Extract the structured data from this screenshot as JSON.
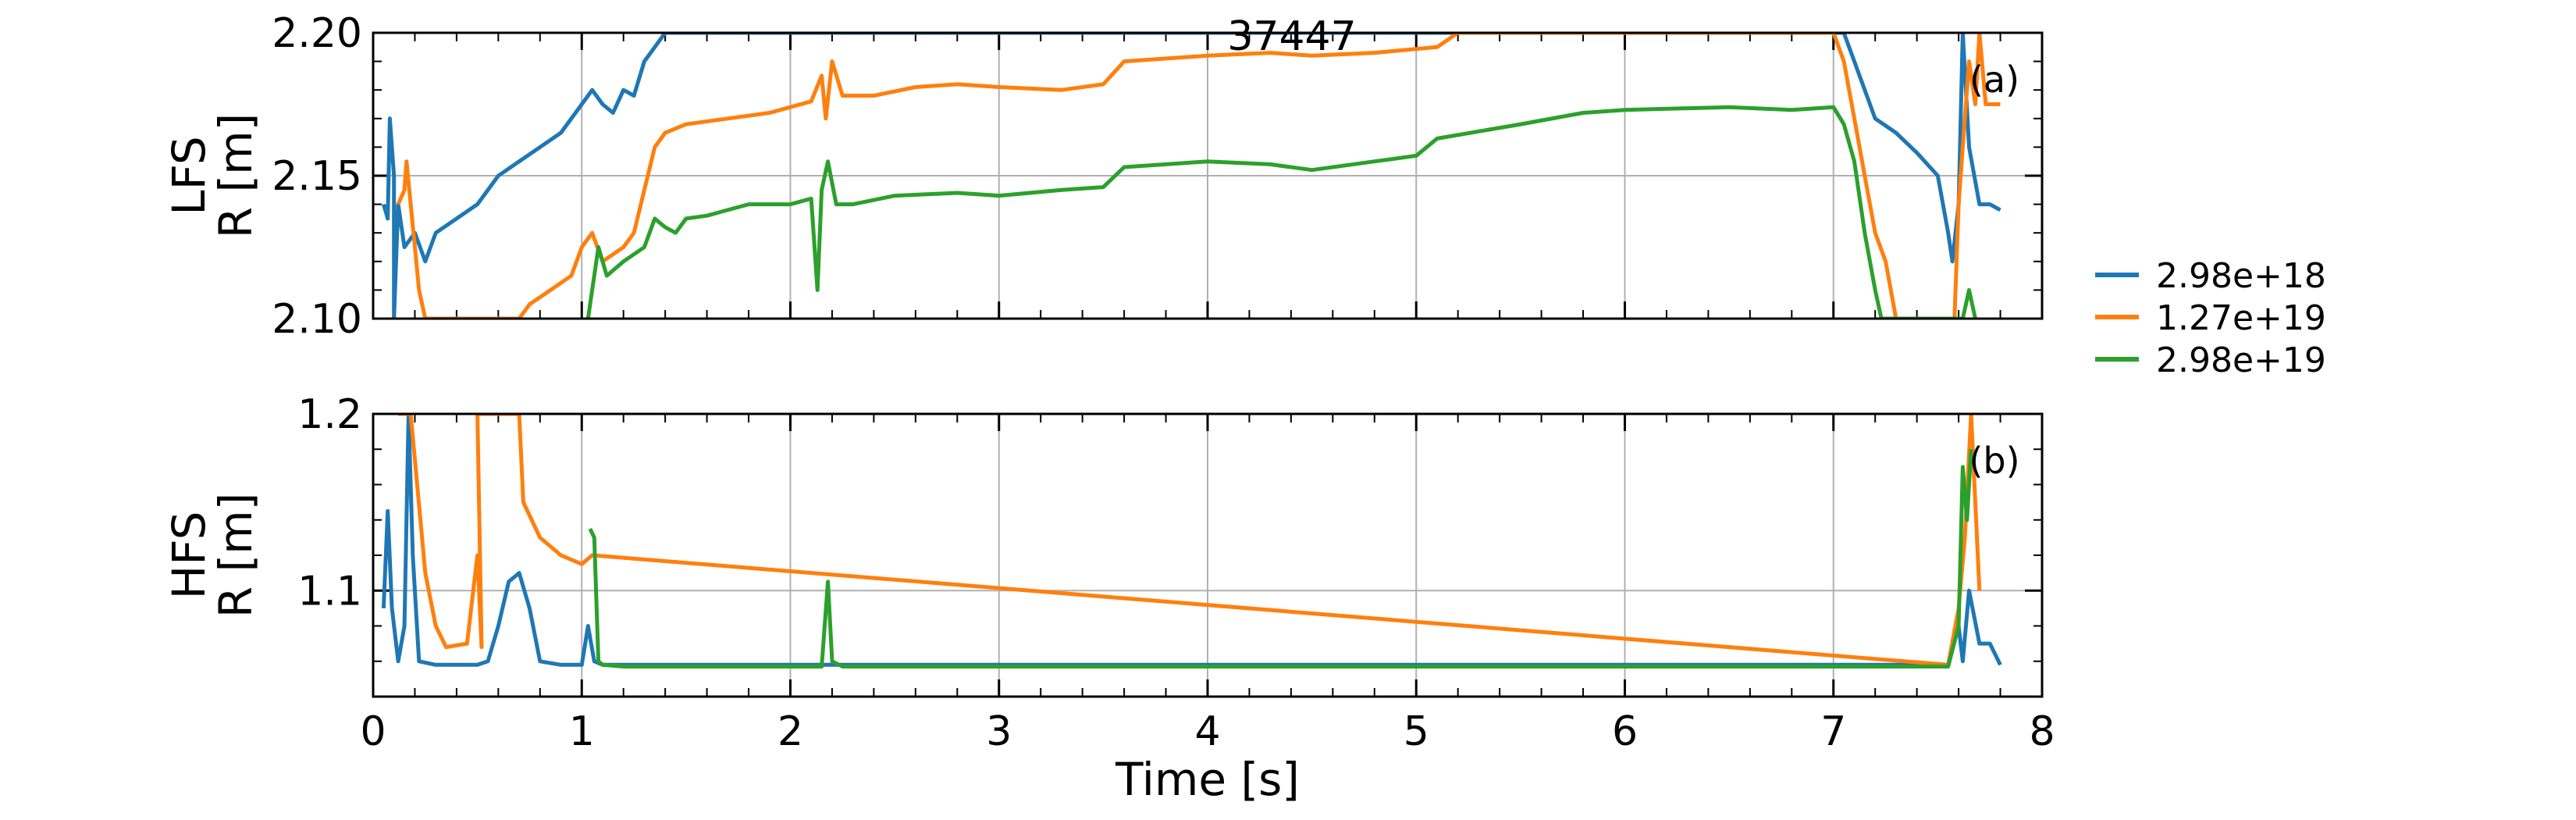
{
  "title": "37447",
  "xlabel": "Time [s]",
  "colors": {
    "series_1": "#1f77b4",
    "series_2": "#ff7f0e",
    "series_3": "#2ca02c",
    "grid": "#b0b0b0",
    "axes": "#000000"
  },
  "legend": {
    "placement": "right, outside plots",
    "entries": [
      "2.98e+18",
      "1.27e+19",
      "2.98e+19"
    ]
  },
  "chart_data": [
    {
      "type": "line",
      "panel_tag": "(a)",
      "title": "37447",
      "xlabel": "",
      "ylabel_line1": "LFS",
      "ylabel_line2": "R [m]",
      "xlim": [
        0,
        8
      ],
      "ylim": [
        2.1,
        2.2
      ],
      "xticks": [
        0,
        1,
        2,
        3,
        4,
        5,
        6,
        7,
        8
      ],
      "yticks": [
        2.1,
        2.15,
        2.2
      ],
      "ytick_labels": [
        "2.10",
        "2.15",
        "2.20"
      ],
      "grid": true,
      "series": [
        {
          "name": "2.98e+18",
          "points": [
            [
              0.05,
              2.14
            ],
            [
              0.07,
              2.135
            ],
            [
              0.08,
              2.17
            ],
            [
              0.1,
              2.15
            ],
            [
              0.1,
              2.1
            ],
            [
              0.12,
              2.14
            ],
            [
              0.15,
              2.125
            ],
            [
              0.2,
              2.13
            ],
            [
              0.25,
              2.12
            ],
            [
              0.3,
              2.13
            ],
            [
              0.4,
              2.135
            ],
            [
              0.5,
              2.14
            ],
            [
              0.6,
              2.15
            ],
            [
              0.7,
              2.155
            ],
            [
              0.8,
              2.16
            ],
            [
              0.9,
              2.165
            ],
            [
              1.0,
              2.175
            ],
            [
              1.05,
              2.18
            ],
            [
              1.1,
              2.175
            ],
            [
              1.15,
              2.172
            ],
            [
              1.2,
              2.18
            ],
            [
              1.25,
              2.178
            ],
            [
              1.3,
              2.19
            ],
            [
              1.35,
              2.195
            ],
            [
              1.4,
              2.2
            ],
            [
              7.05,
              2.2
            ],
            [
              7.1,
              2.19
            ],
            [
              7.2,
              2.17
            ],
            [
              7.3,
              2.165
            ],
            [
              7.4,
              2.158
            ],
            [
              7.5,
              2.15
            ],
            [
              7.55,
              2.13
            ],
            [
              7.57,
              2.12
            ],
            [
              7.6,
              2.14
            ],
            [
              7.62,
              2.2
            ],
            [
              7.65,
              2.16
            ],
            [
              7.7,
              2.14
            ],
            [
              7.75,
              2.14
            ],
            [
              7.8,
              2.138
            ]
          ]
        },
        {
          "name": "1.27e+19",
          "points": [
            [
              0.12,
              2.14
            ],
            [
              0.15,
              2.145
            ],
            [
              0.16,
              2.155
            ],
            [
              0.18,
              2.14
            ],
            [
              0.2,
              2.125
            ],
            [
              0.22,
              2.11
            ],
            [
              0.25,
              2.1
            ],
            [
              0.7,
              2.1
            ],
            [
              0.75,
              2.105
            ],
            [
              0.85,
              2.11
            ],
            [
              0.95,
              2.115
            ],
            [
              1.0,
              2.125
            ],
            [
              1.05,
              2.13
            ],
            [
              1.1,
              2.12
            ],
            [
              1.2,
              2.125
            ],
            [
              1.25,
              2.13
            ],
            [
              1.3,
              2.145
            ],
            [
              1.35,
              2.16
            ],
            [
              1.4,
              2.165
            ],
            [
              1.5,
              2.168
            ],
            [
              1.7,
              2.17
            ],
            [
              1.9,
              2.172
            ],
            [
              2.0,
              2.174
            ],
            [
              2.1,
              2.176
            ],
            [
              2.15,
              2.185
            ],
            [
              2.17,
              2.17
            ],
            [
              2.2,
              2.19
            ],
            [
              2.25,
              2.178
            ],
            [
              2.4,
              2.178
            ],
            [
              2.6,
              2.181
            ],
            [
              2.8,
              2.182
            ],
            [
              3.0,
              2.181
            ],
            [
              3.3,
              2.18
            ],
            [
              3.5,
              2.182
            ],
            [
              3.6,
              2.19
            ],
            [
              4.0,
              2.192
            ],
            [
              4.3,
              2.193
            ],
            [
              4.5,
              2.192
            ],
            [
              4.8,
              2.193
            ],
            [
              5.1,
              2.195
            ],
            [
              5.2,
              2.2
            ],
            [
              7.0,
              2.2
            ],
            [
              7.05,
              2.19
            ],
            [
              7.1,
              2.17
            ],
            [
              7.15,
              2.15
            ],
            [
              7.2,
              2.13
            ],
            [
              7.25,
              2.12
            ],
            [
              7.3,
              2.1
            ],
            [
              7.58,
              2.1
            ],
            [
              7.6,
              2.14
            ],
            [
              7.62,
              2.16
            ],
            [
              7.65,
              2.19
            ],
            [
              7.68,
              2.175
            ],
            [
              7.7,
              2.2
            ],
            [
              7.73,
              2.175
            ],
            [
              7.8,
              2.175
            ]
          ]
        },
        {
          "name": "2.98e+19",
          "points": [
            [
              1.03,
              2.1
            ],
            [
              1.05,
              2.11
            ],
            [
              1.08,
              2.125
            ],
            [
              1.12,
              2.115
            ],
            [
              1.2,
              2.12
            ],
            [
              1.3,
              2.125
            ],
            [
              1.35,
              2.135
            ],
            [
              1.4,
              2.132
            ],
            [
              1.45,
              2.13
            ],
            [
              1.5,
              2.135
            ],
            [
              1.6,
              2.136
            ],
            [
              1.7,
              2.138
            ],
            [
              1.8,
              2.14
            ],
            [
              2.0,
              2.14
            ],
            [
              2.1,
              2.142
            ],
            [
              2.13,
              2.11
            ],
            [
              2.15,
              2.145
            ],
            [
              2.18,
              2.155
            ],
            [
              2.22,
              2.14
            ],
            [
              2.3,
              2.14
            ],
            [
              2.5,
              2.143
            ],
            [
              2.8,
              2.144
            ],
            [
              3.0,
              2.143
            ],
            [
              3.3,
              2.145
            ],
            [
              3.5,
              2.146
            ],
            [
              3.6,
              2.153
            ],
            [
              4.0,
              2.155
            ],
            [
              4.3,
              2.154
            ],
            [
              4.5,
              2.152
            ],
            [
              4.8,
              2.155
            ],
            [
              5.0,
              2.157
            ],
            [
              5.1,
              2.163
            ],
            [
              5.5,
              2.168
            ],
            [
              5.8,
              2.172
            ],
            [
              6.0,
              2.173
            ],
            [
              6.5,
              2.174
            ],
            [
              6.8,
              2.173
            ],
            [
              7.0,
              2.174
            ],
            [
              7.05,
              2.168
            ],
            [
              7.1,
              2.155
            ],
            [
              7.15,
              2.13
            ],
            [
              7.2,
              2.11
            ],
            [
              7.23,
              2.1
            ],
            [
              7.62,
              2.1
            ],
            [
              7.65,
              2.11
            ],
            [
              7.68,
              2.1
            ]
          ]
        }
      ]
    },
    {
      "type": "line",
      "panel_tag": "(b)",
      "title": "",
      "xlabel": "Time [s]",
      "ylabel_line1": "HFS",
      "ylabel_line2": "R [m]",
      "xlim": [
        0,
        8
      ],
      "ylim": [
        1.04,
        1.2
      ],
      "xticks": [
        0,
        1,
        2,
        3,
        4,
        5,
        6,
        7,
        8
      ],
      "yticks": [
        1.1,
        1.2
      ],
      "ytick_labels": [
        "1.1",
        "1.2"
      ],
      "grid": true,
      "series": [
        {
          "name": "2.98e+18",
          "points": [
            [
              0.05,
              1.09
            ],
            [
              0.07,
              1.145
            ],
            [
              0.09,
              1.09
            ],
            [
              0.12,
              1.06
            ],
            [
              0.15,
              1.08
            ],
            [
              0.17,
              1.2
            ],
            [
              0.19,
              1.12
            ],
            [
              0.22,
              1.06
            ],
            [
              0.3,
              1.058
            ],
            [
              0.5,
              1.058
            ],
            [
              0.55,
              1.06
            ],
            [
              0.6,
              1.08
            ],
            [
              0.65,
              1.105
            ],
            [
              0.7,
              1.11
            ],
            [
              0.75,
              1.09
            ],
            [
              0.8,
              1.06
            ],
            [
              0.9,
              1.058
            ],
            [
              1.0,
              1.058
            ],
            [
              1.03,
              1.08
            ],
            [
              1.06,
              1.06
            ],
            [
              1.1,
              1.058
            ],
            [
              7.55,
              1.058
            ],
            [
              7.6,
              1.08
            ],
            [
              7.62,
              1.06
            ],
            [
              7.65,
              1.1
            ],
            [
              7.7,
              1.07
            ],
            [
              7.75,
              1.07
            ],
            [
              7.8,
              1.058
            ]
          ]
        },
        {
          "name": "1.27e+19",
          "points": [
            [
              0.12,
              1.2
            ],
            [
              0.18,
              1.2
            ],
            [
              0.25,
              1.11
            ],
            [
              0.3,
              1.08
            ],
            [
              0.35,
              1.068
            ],
            [
              0.45,
              1.07
            ],
            [
              0.5,
              1.12
            ],
            [
              0.52,
              1.068
            ],
            [
              0.5,
              1.2
            ],
            [
              0.7,
              1.2
            ],
            [
              0.72,
              1.15
            ],
            [
              0.8,
              1.13
            ],
            [
              0.9,
              1.12
            ],
            [
              1.0,
              1.115
            ],
            [
              1.05,
              1.12
            ],
            [
              7.55,
              1.058
            ],
            [
              7.6,
              1.09
            ],
            [
              7.63,
              1.13
            ],
            [
              7.66,
              1.2
            ],
            [
              7.7,
              1.1
            ]
          ]
        },
        {
          "name": "2.98e+19",
          "points": [
            [
              1.04,
              1.135
            ],
            [
              1.06,
              1.13
            ],
            [
              1.08,
              1.06
            ],
            [
              1.1,
              1.058
            ],
            [
              1.2,
              1.057
            ],
            [
              2.0,
              1.057
            ],
            [
              2.15,
              1.057
            ],
            [
              2.18,
              1.105
            ],
            [
              2.2,
              1.06
            ],
            [
              2.25,
              1.057
            ],
            [
              3.0,
              1.057
            ],
            [
              5.0,
              1.057
            ],
            [
              7.0,
              1.057
            ],
            [
              7.55,
              1.057
            ],
            [
              7.6,
              1.08
            ],
            [
              7.62,
              1.17
            ],
            [
              7.64,
              1.14
            ],
            [
              7.66,
              1.18
            ]
          ]
        }
      ]
    }
  ]
}
